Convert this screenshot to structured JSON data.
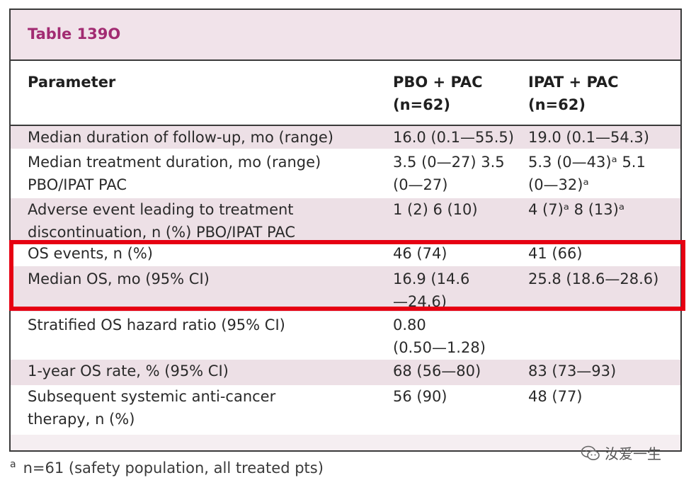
{
  "table": {
    "title": "Table 139O",
    "headers": {
      "parameter": "Parameter",
      "col2": "PBO + PAC\n(n=62)",
      "col3": "IPAT + PAC\n(n=62)"
    },
    "rows": [
      {
        "param": "Median duration of follow-up, mo (range)",
        "col2": "16.0 (0.1—55.5)",
        "col3": "19.0 (0.1—54.3)"
      },
      {
        "param": "Median treatment duration, mo (range)\nPBO/IPAT PAC",
        "col2": "3.5 (0—27) 3.5\n(0—27)",
        "col3": "5.3 (0—43)ᵃ 5.1\n(0—32)ᵃ"
      },
      {
        "param": "Adverse event leading to treatment\ndiscontinuation, n (%) PBO/IPAT PAC",
        "col2": "1 (2) 6 (10)",
        "col3": "4 (7)ᵃ 8 (13)ᵃ"
      },
      {
        "param": "OS events, n (%)",
        "col2": "46 (74)",
        "col3": "41 (66)"
      },
      {
        "param": "Median OS, mo (95% CI)",
        "col2": "16.9 (14.6\n—24.6)",
        "col3": "25.8 (18.6—28.6)"
      },
      {
        "param": "Stratified OS hazard ratio (95% CI)",
        "col2": "0.80\n(0.50—1.28)",
        "col3": ""
      },
      {
        "param": "1-year OS rate, % (95% CI)",
        "col2": "68 (56—80)",
        "col3": "83 (73—93)"
      },
      {
        "param": "Subsequent systemic anti-cancer\ntherapy, n (%)",
        "col2": "56 (90)",
        "col3": "48 (77)"
      }
    ]
  },
  "footnote": {
    "mark": "a",
    "text": "n=61 (safety population, all treated pts)"
  },
  "watermark": {
    "text": "汝爱一生",
    "icon": "wechat-icon"
  },
  "highlight_color": "#e60012"
}
